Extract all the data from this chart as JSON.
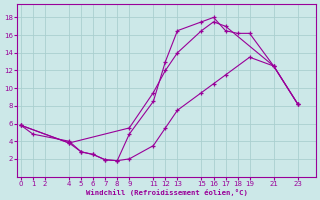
{
  "xlabel": "Windchill (Refroidissement éolien,°C)",
  "background_color": "#cce8e8",
  "line_color": "#990099",
  "grid_color": "#aacfcf",
  "curve1_x": [
    0,
    1,
    4,
    5,
    6,
    7,
    8,
    9,
    11,
    12,
    13,
    15,
    16,
    17,
    18,
    19,
    21,
    23
  ],
  "curve1_y": [
    5.8,
    4.8,
    4.0,
    2.8,
    2.5,
    1.9,
    1.8,
    4.8,
    8.5,
    13.0,
    16.5,
    17.5,
    18.0,
    16.5,
    16.2,
    16.2,
    12.5,
    8.2
  ],
  "curve2_x": [
    0,
    4,
    9,
    11,
    12,
    13,
    15,
    16,
    17,
    21,
    23
  ],
  "curve2_y": [
    5.8,
    3.8,
    5.5,
    9.5,
    12.0,
    14.0,
    16.5,
    17.5,
    17.0,
    12.5,
    8.2
  ],
  "curve3_x": [
    0,
    4,
    5,
    6,
    7,
    8,
    9,
    11,
    12,
    13,
    15,
    16,
    17,
    19,
    21,
    23
  ],
  "curve3_y": [
    5.8,
    3.8,
    2.8,
    2.5,
    1.9,
    1.8,
    2.0,
    3.5,
    5.5,
    7.5,
    9.5,
    10.5,
    11.5,
    13.5,
    12.5,
    8.2
  ],
  "xlim": [
    -0.3,
    24.5
  ],
  "ylim": [
    0,
    19.5
  ],
  "xticks": [
    0,
    1,
    2,
    4,
    5,
    6,
    7,
    8,
    9,
    11,
    12,
    13,
    15,
    16,
    17,
    18,
    19,
    21,
    23
  ],
  "yticks": [
    2,
    4,
    6,
    8,
    10,
    12,
    14,
    16,
    18
  ]
}
